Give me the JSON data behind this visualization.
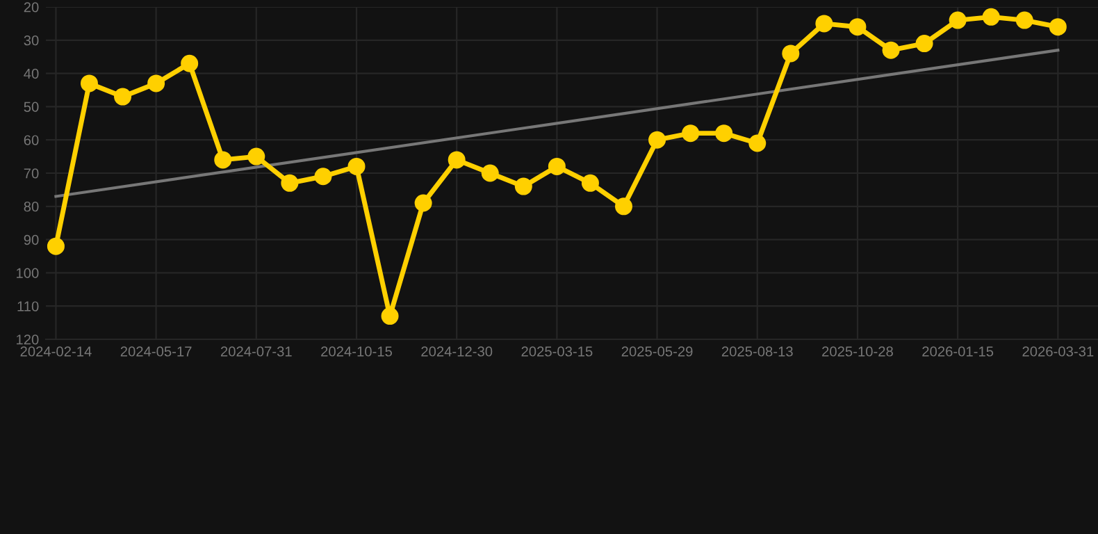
{
  "chart_data": {
    "type": "line",
    "categories": [
      "2024-02-14",
      null,
      null,
      "2024-05-17",
      null,
      null,
      "2024-07-31",
      null,
      null,
      "2024-10-15",
      null,
      null,
      "2024-12-30",
      null,
      null,
      "2025-03-15",
      null,
      null,
      "2025-05-29",
      null,
      null,
      "2025-08-13",
      null,
      null,
      "2025-10-28",
      null,
      null,
      "2026-01-15",
      null,
      null,
      "2026-03-31"
    ],
    "series": [
      {
        "color": "#ffd000",
        "marker": "circle",
        "values": [
          92,
          43,
          47,
          43,
          37,
          66,
          65,
          73,
          71,
          68,
          113,
          79,
          66,
          70,
          74,
          68,
          73,
          80,
          60,
          58,
          58,
          61,
          34,
          25,
          26,
          33,
          31,
          24,
          23,
          24,
          26
        ]
      },
      {
        "type": "line",
        "color": "#777777",
        "marker": "none",
        "values": [
          77,
          null,
          null,
          null,
          null,
          null,
          null,
          null,
          null,
          null,
          null,
          null,
          null,
          null,
          null,
          null,
          null,
          null,
          null,
          null,
          null,
          null,
          null,
          null,
          null,
          null,
          null,
          null,
          null,
          null,
          33
        ]
      }
    ],
    "ylim": [
      120,
      20
    ],
    "yticks": [
      20,
      30,
      40,
      50,
      60,
      70,
      80,
      90,
      100,
      110,
      120
    ],
    "grid": true,
    "line_style": "solid"
  }
}
